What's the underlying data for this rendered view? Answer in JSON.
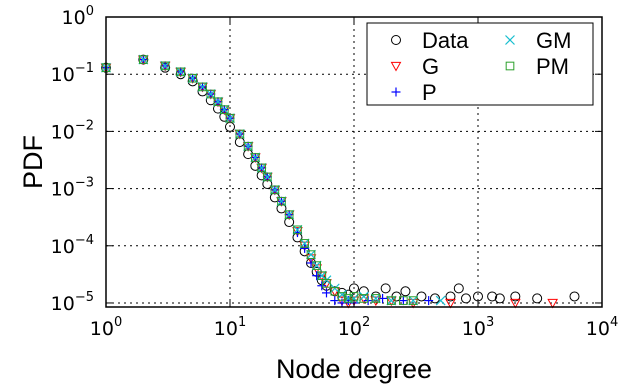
{
  "chart_data": {
    "type": "scatter",
    "xscale": "log",
    "yscale": "log",
    "xlim": [
      1,
      10000
    ],
    "ylim": [
      8.5e-06,
      1
    ],
    "xlabel": "Node degree",
    "ylabel": "PDF",
    "grid": true,
    "legend_position": "top-right",
    "xticks": [
      {
        "base": "10",
        "exp": "0",
        "value": 1
      },
      {
        "base": "10",
        "exp": "1",
        "value": 10
      },
      {
        "base": "10",
        "exp": "2",
        "value": 100
      },
      {
        "base": "10",
        "exp": "3",
        "value": 1000
      },
      {
        "base": "10",
        "exp": "4",
        "value": 10000
      }
    ],
    "yticks": [
      {
        "base": "10",
        "exp": "0",
        "value": 1
      },
      {
        "base": "10",
        "exp": "−1",
        "value": 0.1
      },
      {
        "base": "10",
        "exp": "−2",
        "value": 0.01
      },
      {
        "base": "10",
        "exp": "−3",
        "value": 0.001
      },
      {
        "base": "10",
        "exp": "−4",
        "value": 0.0001
      },
      {
        "base": "10",
        "exp": "−5",
        "value": 1e-05
      }
    ],
    "series": [
      {
        "name": "Data",
        "marker": "circle",
        "color": "#000000",
        "x": [
          1,
          2,
          3,
          4,
          5,
          6,
          7,
          8,
          9,
          10,
          12,
          14,
          16,
          18,
          20,
          23,
          26,
          30,
          35,
          40,
          45,
          50,
          55,
          60,
          70,
          80,
          90,
          100,
          120,
          150,
          180,
          220,
          260,
          350,
          450,
          600,
          700,
          800,
          1000,
          1300,
          1500,
          2000,
          3000,
          6000
        ],
        "y": [
          0.13,
          0.18,
          0.13,
          0.1,
          0.075,
          0.05,
          0.035,
          0.025,
          0.018,
          0.012,
          0.0065,
          0.004,
          0.0025,
          0.0017,
          0.0012,
          0.0007,
          0.00045,
          0.00026,
          0.00014,
          8e-05,
          5e-05,
          3.5e-05,
          2.5e-05,
          2e-05,
          1.6e-05,
          1.5e-05,
          1.4e-05,
          1.8e-05,
          1.6e-05,
          1.3e-05,
          1.8e-05,
          1.3e-05,
          1.6e-05,
          1.3e-05,
          1.2e-05,
          1.3e-05,
          1.8e-05,
          1.2e-05,
          1.3e-05,
          1.3e-05,
          1.2e-05,
          1.3e-05,
          1.2e-05,
          1.3e-05
        ]
      },
      {
        "name": "G",
        "marker": "triangle-down",
        "color": "#ff0000",
        "x": [
          1,
          2,
          3,
          4,
          5,
          6,
          7,
          8,
          9,
          10,
          12,
          14,
          16,
          18,
          20,
          23,
          26,
          30,
          35,
          40,
          45,
          50,
          55,
          60,
          70,
          80,
          90,
          100,
          120,
          150,
          200,
          300,
          600,
          2000,
          4000
        ],
        "y": [
          0.13,
          0.18,
          0.14,
          0.11,
          0.085,
          0.06,
          0.045,
          0.033,
          0.024,
          0.017,
          0.009,
          0.0055,
          0.0035,
          0.0023,
          0.0016,
          0.00095,
          0.0006,
          0.00035,
          0.00018,
          0.0001,
          6e-05,
          4e-05,
          3e-05,
          2.2e-05,
          1.6e-05,
          1.1e-05,
          1e-05,
          1.1e-05,
          1.2e-05,
          1.1e-05,
          1.1e-05,
          1e-05,
          1e-05,
          1e-05,
          1e-05
        ]
      },
      {
        "name": "P",
        "marker": "plus",
        "color": "#0000ff",
        "x": [
          1,
          2,
          3,
          4,
          5,
          6,
          7,
          8,
          9,
          10,
          12,
          14,
          16,
          18,
          20,
          23,
          26,
          30,
          35,
          40,
          45,
          50,
          55,
          60,
          70,
          80,
          90,
          100,
          130,
          170,
          250,
          400
        ],
        "y": [
          0.13,
          0.18,
          0.14,
          0.11,
          0.085,
          0.06,
          0.045,
          0.033,
          0.024,
          0.017,
          0.009,
          0.0055,
          0.0035,
          0.0023,
          0.0016,
          0.00095,
          0.0006,
          0.00035,
          0.00017,
          9e-05,
          5e-05,
          3e-05,
          2e-05,
          1.5e-05,
          1.1e-05,
          1e-05,
          1.1e-05,
          1e-05,
          1.1e-05,
          1.2e-05,
          1.1e-05,
          1.1e-05
        ]
      },
      {
        "name": "GM",
        "marker": "x",
        "color": "#17becf",
        "x": [
          1,
          2,
          3,
          4,
          5,
          6,
          7,
          8,
          9,
          10,
          12,
          14,
          16,
          18,
          20,
          23,
          26,
          30,
          35,
          40,
          45,
          50,
          55,
          60,
          70,
          80,
          90,
          100,
          120,
          150,
          200,
          300,
          500
        ],
        "y": [
          0.13,
          0.18,
          0.14,
          0.11,
          0.085,
          0.06,
          0.045,
          0.033,
          0.024,
          0.017,
          0.009,
          0.0055,
          0.0035,
          0.0023,
          0.0016,
          0.00095,
          0.0006,
          0.00035,
          0.00019,
          0.00011,
          7e-05,
          4.5e-05,
          3e-05,
          2.5e-05,
          1.8e-05,
          1.4e-05,
          1.2e-05,
          1.2e-05,
          1.3e-05,
          1.2e-05,
          1.1e-05,
          1.1e-05,
          1.1e-05
        ]
      },
      {
        "name": "PM",
        "marker": "square",
        "color": "#2ca02c",
        "x": [
          1,
          2,
          3,
          4,
          5,
          6,
          7,
          8,
          9,
          10,
          12,
          14,
          16,
          18,
          20,
          23,
          26,
          30,
          35,
          40,
          45,
          50,
          55,
          60,
          70,
          80,
          90,
          100,
          120,
          150,
          200,
          250,
          300
        ],
        "y": [
          0.13,
          0.18,
          0.14,
          0.11,
          0.085,
          0.06,
          0.045,
          0.033,
          0.024,
          0.017,
          0.009,
          0.0055,
          0.0035,
          0.0023,
          0.0016,
          0.00095,
          0.0006,
          0.00035,
          0.00019,
          0.00011,
          7e-05,
          4.5e-05,
          3e-05,
          2.2e-05,
          1.6e-05,
          1.3e-05,
          1.2e-05,
          1.3e-05,
          1.2e-05,
          1.2e-05,
          1.1e-05,
          1.1e-05,
          1.1e-05
        ]
      }
    ]
  }
}
